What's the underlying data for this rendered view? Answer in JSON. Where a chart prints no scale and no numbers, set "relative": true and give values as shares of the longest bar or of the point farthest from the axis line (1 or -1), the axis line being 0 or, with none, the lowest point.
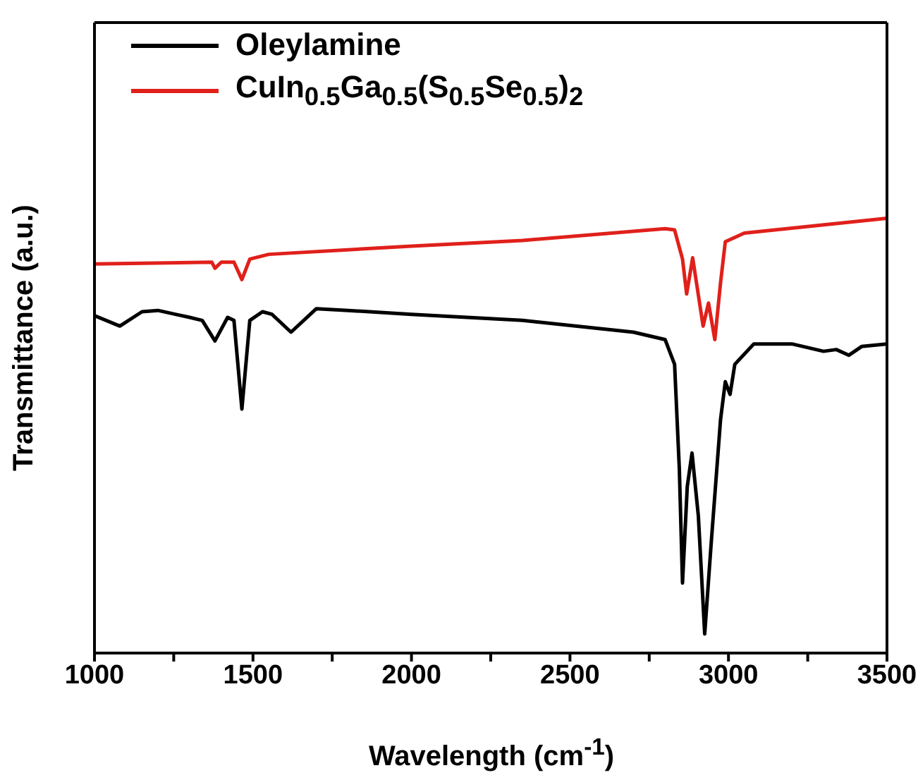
{
  "chart_data": {
    "type": "line",
    "relative": true,
    "xlabel": "Wavelength (cm$^{-1}$)",
    "ylabel": "Transmittance (a.u.)",
    "legend": "top left",
    "marker": "none",
    "line_style": "solid",
    "xlim": [
      1000,
      3500
    ],
    "xticks": [
      1000,
      {
        "value": 1250,
        "label": null
      },
      1500,
      {
        "value": 1750,
        "label": null
      },
      2000,
      {
        "value": 2250,
        "label": null
      },
      2500,
      {
        "value": 2750,
        "label": null
      },
      3000,
      {
        "value": 3250,
        "label": null
      },
      3500
    ],
    "series": [
      {
        "name": "Oleylamine",
        "color": "#000000",
        "x": [
          1000,
          1080,
          1150,
          1200,
          1300,
          1340,
          1380,
          1420,
          1440,
          1465,
          1490,
          1530,
          1560,
          1620,
          1700,
          1800,
          2000,
          2350,
          2700,
          2800,
          2830,
          2845,
          2855,
          2870,
          2885,
          2905,
          2925,
          2945,
          2975,
          2990,
          3005,
          3020,
          3080,
          3200,
          3300,
          3340,
          3380,
          3420,
          3500
        ],
        "values": [
          0.776,
          0.752,
          0.785,
          0.788,
          0.772,
          0.765,
          0.718,
          0.772,
          0.765,
          0.561,
          0.765,
          0.785,
          0.779,
          0.738,
          0.792,
          0.788,
          0.779,
          0.765,
          0.738,
          0.721,
          0.664,
          0.423,
          0.161,
          0.383,
          0.46,
          0.315,
          0.044,
          0.248,
          0.537,
          0.624,
          0.595,
          0.664,
          0.711,
          0.711,
          0.694,
          0.698,
          0.685,
          0.705,
          0.711
        ]
      },
      {
        "name": "CuIn$_{0.5}$Ga$_{0.5}$(S$_{0.5}$Se$_{0.5}$)$_{2}$",
        "color": "#e0201b",
        "x": [
          1000,
          1370,
          1380,
          1400,
          1440,
          1465,
          1490,
          1550,
          2000,
          2350,
          2800,
          2830,
          2855,
          2868,
          2887,
          2920,
          2937,
          2957,
          2975,
          2990,
          3050,
          3500
        ],
        "values": [
          0.895,
          0.899,
          0.885,
          0.899,
          0.899,
          0.859,
          0.906,
          0.917,
          0.936,
          0.949,
          0.976,
          0.973,
          0.906,
          0.826,
          0.909,
          0.752,
          0.805,
          0.721,
          0.852,
          0.946,
          0.966,
          1
        ]
      }
    ]
  }
}
